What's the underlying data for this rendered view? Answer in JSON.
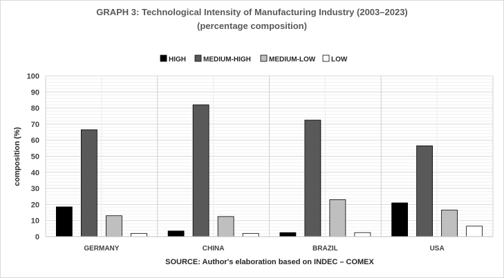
{
  "chart_data": {
    "type": "bar",
    "title": "GRAPH 3: Technological Intensity of Manufacturing Industry (2003–2023)",
    "subtitle": "(percentage composition)",
    "categories": [
      "GERMANY",
      "CHINA",
      "BRAZIL",
      "USA"
    ],
    "series": [
      {
        "name": "HIGH",
        "values": [
          18.5,
          3.5,
          2.5,
          21
        ],
        "color": "#000000"
      },
      {
        "name": "MEDIUM-HIGH",
        "values": [
          66.5,
          82,
          72.5,
          56.5
        ],
        "color": "#595959"
      },
      {
        "name": "MEDIUM-LOW",
        "values": [
          13,
          12.5,
          23,
          16.5
        ],
        "color": "#bfbfbf"
      },
      {
        "name": "LOW",
        "values": [
          2,
          2,
          2.5,
          6.5
        ],
        "color": "#ffffff"
      }
    ],
    "ylabel": "composition (%)",
    "xlabel": "",
    "ylim": [
      0,
      100
    ],
    "yticks": [
      0,
      10,
      20,
      30,
      40,
      50,
      60,
      70,
      80,
      90,
      100
    ],
    "grid": true,
    "legend_position": "top-center",
    "source": "SOURCE: Author's elaboration based on INDEC – COMEX"
  }
}
